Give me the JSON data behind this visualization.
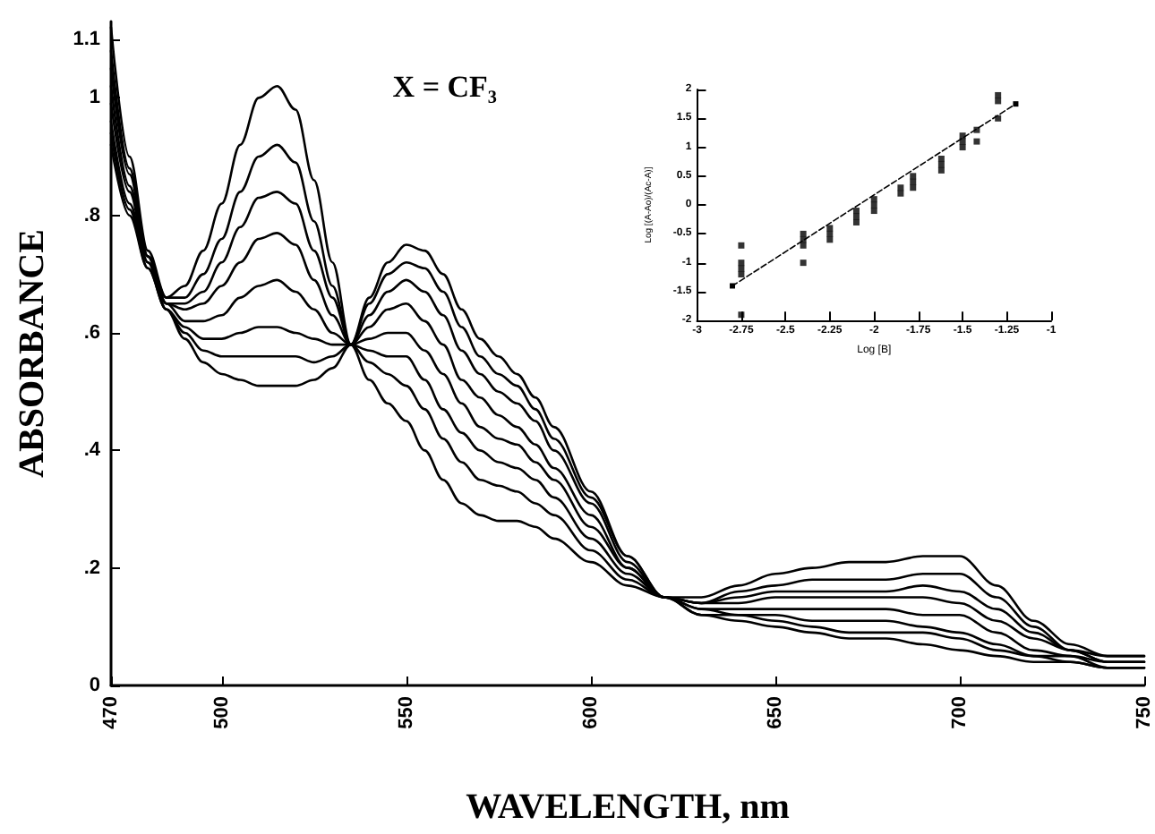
{
  "chart_data": [
    {
      "type": "line",
      "xlabel": "WAVELENGTH, nm",
      "ylabel": "ABSORBANCE",
      "annotations": [
        "X = CF₃"
      ],
      "marker": "none",
      "line_style": "solid",
      "grid": false,
      "xlim": [
        470,
        750
      ],
      "xticks": [
        470,
        500,
        550,
        600,
        650,
        700,
        750
      ],
      "ylim": [
        0,
        1.13
      ],
      "yticks": [
        0,
        {
          "value": 0.2,
          "label": ".2"
        },
        {
          "value": 0.4,
          "label": ".4"
        },
        {
          "value": 0.6,
          "label": ".6"
        },
        {
          "value": 0.8,
          "label": ".8"
        },
        1,
        1.1
      ],
      "x": [
        470,
        475,
        480,
        485,
        490,
        495,
        500,
        505,
        510,
        515,
        520,
        525,
        530,
        535,
        540,
        545,
        550,
        555,
        560,
        565,
        570,
        575,
        580,
        585,
        590,
        600,
        610,
        620,
        630,
        640,
        650,
        660,
        670,
        680,
        690,
        700,
        710,
        720,
        730,
        740,
        750
      ],
      "series": [
        {
          "color": "#000000",
          "values": [
            0.92,
            0.8,
            0.71,
            0.64,
            0.59,
            0.55,
            0.53,
            0.52,
            0.51,
            0.51,
            0.51,
            0.52,
            0.54,
            0.58,
            0.66,
            0.72,
            0.75,
            0.74,
            0.7,
            0.64,
            0.59,
            0.56,
            0.53,
            0.49,
            0.44,
            0.33,
            0.22,
            0.15,
            0.12,
            0.11,
            0.1,
            0.09,
            0.08,
            0.08,
            0.07,
            0.06,
            0.05,
            0.04,
            0.04,
            0.03,
            0.03
          ]
        },
        {
          "color": "#000000",
          "values": [
            0.94,
            0.81,
            0.71,
            0.64,
            0.6,
            0.57,
            0.56,
            0.56,
            0.56,
            0.56,
            0.56,
            0.55,
            0.56,
            0.58,
            0.65,
            0.7,
            0.72,
            0.71,
            0.67,
            0.61,
            0.56,
            0.53,
            0.51,
            0.47,
            0.42,
            0.32,
            0.22,
            0.15,
            0.12,
            0.12,
            0.11,
            0.1,
            0.09,
            0.09,
            0.09,
            0.08,
            0.06,
            0.05,
            0.04,
            0.03,
            0.03
          ]
        },
        {
          "color": "#000000",
          "values": [
            0.96,
            0.82,
            0.72,
            0.64,
            0.61,
            0.59,
            0.59,
            0.6,
            0.61,
            0.61,
            0.6,
            0.59,
            0.58,
            0.58,
            0.63,
            0.67,
            0.69,
            0.67,
            0.63,
            0.57,
            0.53,
            0.5,
            0.48,
            0.45,
            0.4,
            0.31,
            0.21,
            0.15,
            0.13,
            0.12,
            0.12,
            0.11,
            0.11,
            0.11,
            0.1,
            0.09,
            0.07,
            0.05,
            0.05,
            0.03,
            0.03
          ]
        },
        {
          "color": "#000000",
          "values": [
            0.99,
            0.84,
            0.72,
            0.65,
            0.62,
            0.62,
            0.63,
            0.66,
            0.68,
            0.69,
            0.67,
            0.64,
            0.6,
            0.58,
            0.61,
            0.64,
            0.65,
            0.62,
            0.58,
            0.52,
            0.49,
            0.46,
            0.44,
            0.41,
            0.37,
            0.29,
            0.2,
            0.15,
            0.13,
            0.13,
            0.13,
            0.13,
            0.13,
            0.13,
            0.12,
            0.12,
            0.09,
            0.06,
            0.05,
            0.04,
            0.04
          ]
        },
        {
          "color": "#000000",
          "values": [
            1.02,
            0.85,
            0.73,
            0.65,
            0.64,
            0.65,
            0.68,
            0.72,
            0.76,
            0.77,
            0.75,
            0.69,
            0.63,
            0.58,
            0.59,
            0.6,
            0.6,
            0.57,
            0.53,
            0.48,
            0.44,
            0.42,
            0.41,
            0.38,
            0.35,
            0.27,
            0.2,
            0.15,
            0.14,
            0.14,
            0.15,
            0.15,
            0.15,
            0.15,
            0.15,
            0.14,
            0.11,
            0.08,
            0.06,
            0.04,
            0.04
          ]
        },
        {
          "color": "#000000",
          "values": [
            1.05,
            0.87,
            0.73,
            0.65,
            0.65,
            0.67,
            0.72,
            0.78,
            0.83,
            0.84,
            0.82,
            0.74,
            0.66,
            0.58,
            0.57,
            0.56,
            0.56,
            0.52,
            0.47,
            0.43,
            0.4,
            0.38,
            0.37,
            0.35,
            0.32,
            0.25,
            0.19,
            0.15,
            0.14,
            0.15,
            0.16,
            0.16,
            0.16,
            0.16,
            0.17,
            0.16,
            0.13,
            0.09,
            0.06,
            0.04,
            0.04
          ]
        },
        {
          "color": "#000000",
          "values": [
            1.08,
            0.88,
            0.73,
            0.66,
            0.66,
            0.7,
            0.76,
            0.84,
            0.9,
            0.92,
            0.89,
            0.79,
            0.68,
            0.58,
            0.55,
            0.53,
            0.51,
            0.47,
            0.42,
            0.38,
            0.35,
            0.34,
            0.33,
            0.31,
            0.29,
            0.23,
            0.18,
            0.15,
            0.14,
            0.16,
            0.17,
            0.18,
            0.18,
            0.18,
            0.19,
            0.19,
            0.15,
            0.1,
            0.06,
            0.05,
            0.05
          ]
        },
        {
          "color": "#000000",
          "values": [
            1.12,
            0.9,
            0.74,
            0.66,
            0.68,
            0.74,
            0.82,
            0.92,
            1.0,
            1.02,
            0.98,
            0.86,
            0.72,
            0.58,
            0.52,
            0.48,
            0.45,
            0.4,
            0.35,
            0.31,
            0.29,
            0.28,
            0.28,
            0.27,
            0.25,
            0.21,
            0.17,
            0.15,
            0.15,
            0.17,
            0.19,
            0.2,
            0.21,
            0.21,
            0.22,
            0.22,
            0.17,
            0.11,
            0.07,
            0.05,
            0.05
          ]
        }
      ]
    },
    {
      "type": "scatter",
      "xlabel": "Log [B]",
      "ylabel": "Log [(A-Ao)/(Ac-A)]",
      "marker": "square",
      "grid": false,
      "xlim": [
        -3,
        -1
      ],
      "xticks": [
        -3,
        -2.75,
        -2.5,
        -2.25,
        -2,
        -1.75,
        -1.5,
        -1.25,
        -1
      ],
      "ylim": [
        -2,
        2
      ],
      "yticks": [
        -2,
        -1.5,
        -1,
        -0.5,
        0,
        0.5,
        1,
        1.5,
        2
      ],
      "series": [
        {
          "color": "#000000",
          "x": [
            -2.75,
            -2.75,
            -2.75,
            -2.75,
            -2.75,
            -2.4,
            -2.4,
            -2.4,
            -2.4,
            -2.25,
            -2.25,
            -2.25,
            -2.1,
            -2.1,
            -2.1,
            -2,
            -2,
            -2,
            -1.85,
            -1.85,
            -1.78,
            -1.78,
            -1.78,
            -1.62,
            -1.62,
            -1.62,
            -1.5,
            -1.5,
            -1.5,
            -1.42,
            -1.42,
            -1.3,
            -1.3,
            -1.3
          ],
          "values": [
            -0.7,
            -1,
            -1.1,
            -1.2,
            -1.9,
            -0.5,
            -0.6,
            -0.7,
            -1,
            -0.4,
            -0.5,
            -0.6,
            -0.1,
            -0.2,
            -0.3,
            0.1,
            0,
            -0.1,
            0.2,
            0.3,
            0.3,
            0.4,
            0.5,
            0.6,
            0.7,
            0.8,
            1,
            1.1,
            1.2,
            1.1,
            1.3,
            1.9,
            1.8,
            1.5
          ]
        },
        {
          "type": "line",
          "line_style": "dashed",
          "color": "#000000",
          "x": [
            -2.8,
            -1.2
          ],
          "values": [
            -1.4,
            1.75
          ]
        }
      ]
    }
  ]
}
